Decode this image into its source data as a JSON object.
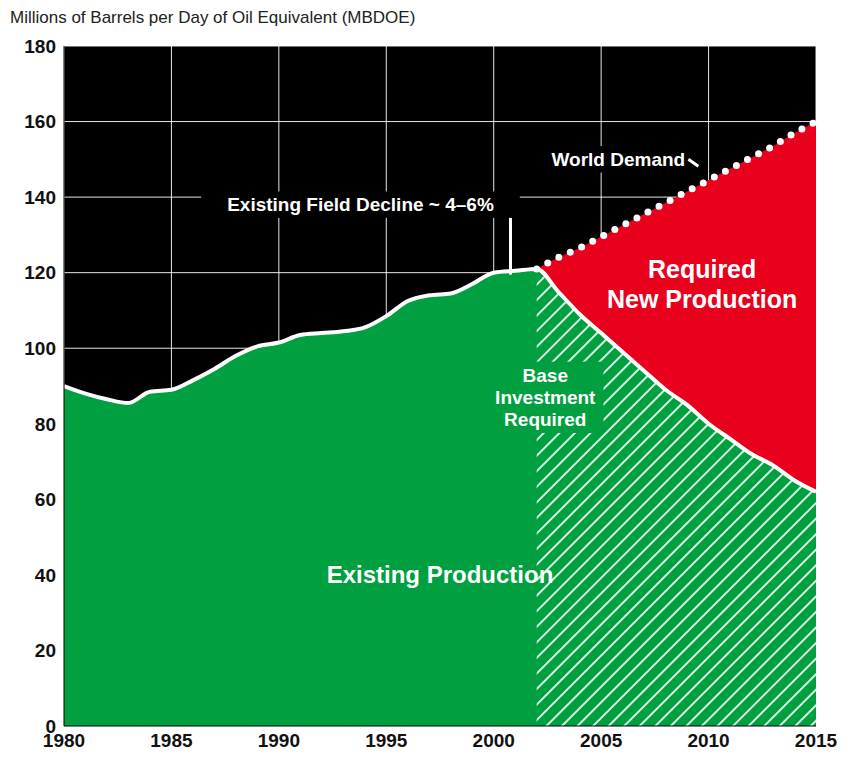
{
  "chart_data": {
    "type": "area",
    "y_label": "Millions of Barrels per Day of Oil Equivalent (MBDOE)",
    "x": [
      1980,
      1981,
      1982,
      1983,
      1984,
      1985,
      1986,
      1987,
      1988,
      1989,
      1990,
      1991,
      1992,
      1993,
      1994,
      1995,
      1996,
      1997,
      1998,
      1999,
      2000,
      2001,
      2002,
      2003,
      2004,
      2005,
      2006,
      2007,
      2008,
      2009,
      2010,
      2011,
      2012,
      2013,
      2014,
      2015
    ],
    "xlim": [
      1980,
      2015
    ],
    "xticks": [
      1980,
      1985,
      1990,
      1995,
      2000,
      2005,
      2010,
      2015
    ],
    "ylim": [
      0,
      180
    ],
    "yticks": [
      0,
      20,
      40,
      60,
      80,
      100,
      120,
      140,
      160,
      180
    ],
    "grid": true,
    "stacked": true,
    "series": [
      {
        "name": "Existing Production",
        "type": "area",
        "color": "#00a040",
        "values": [
          90,
          88,
          86.5,
          85.5,
          88.5,
          89,
          91.5,
          94.5,
          98,
          100.5,
          101.5,
          103.5,
          104,
          104.5,
          105.5,
          108.5,
          112.5,
          114,
          114.5,
          117,
          120,
          120.5,
          121,
          115,
          109,
          104,
          99,
          94,
          89,
          85,
          80,
          76,
          72,
          69,
          65,
          62
        ]
      },
      {
        "name": "Required New Production",
        "type": "area",
        "color": "#e8001c",
        "values": [
          null,
          null,
          null,
          null,
          null,
          null,
          null,
          null,
          null,
          null,
          null,
          null,
          null,
          null,
          null,
          null,
          null,
          null,
          null,
          null,
          null,
          null,
          0,
          9,
          17.5,
          25.5,
          33.5,
          41.5,
          49.5,
          56.5,
          64.5,
          71.5,
          78.5,
          84.5,
          92,
          98
        ]
      },
      {
        "name": "World Demand",
        "type": "line",
        "color": "#ffffff",
        "line_style": "dotted",
        "values": [
          null,
          null,
          null,
          null,
          null,
          null,
          null,
          null,
          null,
          null,
          null,
          null,
          null,
          null,
          null,
          null,
          null,
          null,
          null,
          null,
          null,
          null,
          121,
          124,
          126.5,
          129.5,
          132.5,
          135.5,
          138.5,
          141.5,
          144.5,
          147.5,
          150.5,
          153.5,
          157,
          160
        ]
      }
    ],
    "annotations": [
      "Existing Field Decline ~ 4–6%",
      "Base Investment Required"
    ]
  }
}
